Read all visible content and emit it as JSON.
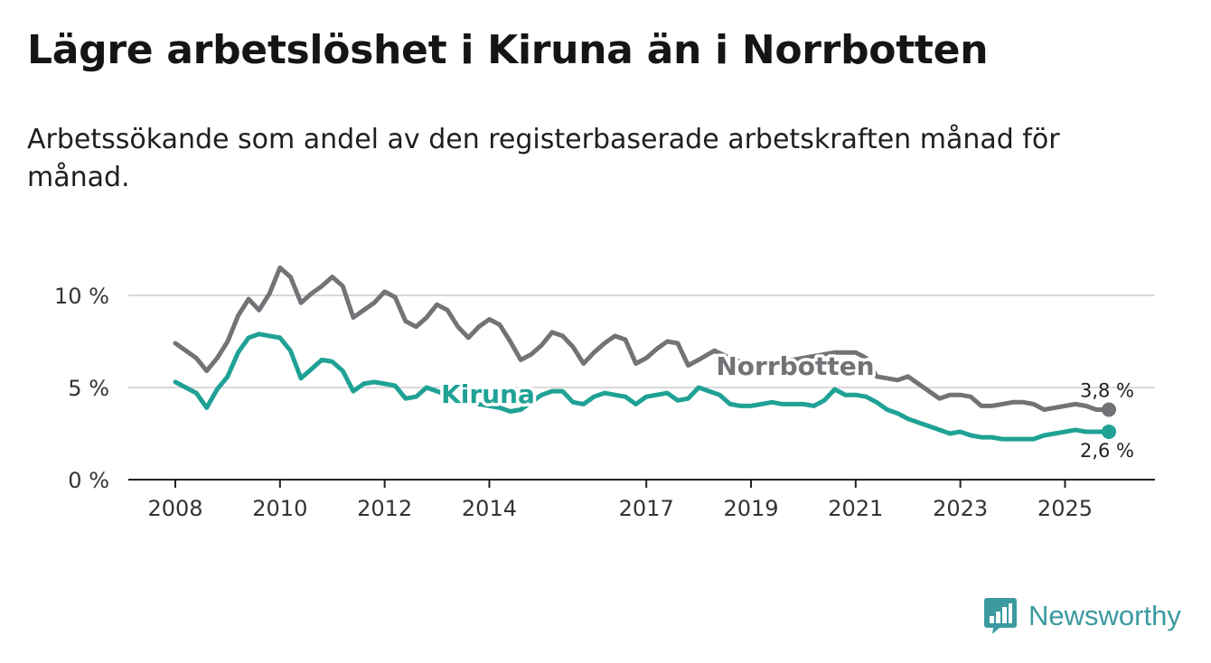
{
  "header": {
    "title": "Lägre arbetslöshet i Kiruna än i Norrbotten",
    "subtitle": "Arbetssökande som andel av den registerbaserade arbetskraften månad för månad."
  },
  "brand": {
    "name": "Newsworthy",
    "color": "#3b9aa0",
    "icon": "bar-chart-icon"
  },
  "chart_data": {
    "type": "line",
    "title": "Lägre arbetslöshet i Kiruna än i Norrbotten",
    "subtitle": "Arbetssökande som andel av den registerbaserade arbetskraften månad för månad.",
    "xlabel": "",
    "ylabel": "",
    "xlim": [
      2008,
      2026.5
    ],
    "ylim": [
      0,
      12
    ],
    "grid": true,
    "x_ticks": [
      2008,
      2010,
      2012,
      2014,
      2017,
      2019,
      2021,
      2023,
      2025
    ],
    "y_ticks": [
      {
        "value": 0,
        "label": "0 %"
      },
      {
        "value": 5,
        "label": "5 %"
      },
      {
        "value": 10,
        "label": "10 %"
      }
    ],
    "series": [
      {
        "name": "Norrbotten",
        "color": "#737377",
        "end_label": "3,8 %",
        "x": [
          2008,
          2008.2,
          2008.4,
          2008.6,
          2008.8,
          2009,
          2009.2,
          2009.4,
          2009.6,
          2009.8,
          2010,
          2010.2,
          2010.4,
          2010.6,
          2010.8,
          2011,
          2011.2,
          2011.4,
          2011.6,
          2011.8,
          2012,
          2012.2,
          2012.4,
          2012.6,
          2012.8,
          2013,
          2013.2,
          2013.4,
          2013.6,
          2013.8,
          2014,
          2014.2,
          2014.4,
          2014.6,
          2014.8,
          2015,
          2015.2,
          2015.4,
          2015.6,
          2015.8,
          2016,
          2016.2,
          2016.4,
          2016.6,
          2016.8,
          2017,
          2017.2,
          2017.4,
          2017.6,
          2017.8,
          2018,
          2018.3,
          2018.6,
          2019,
          2019.4,
          2019.8,
          2020.2,
          2020.6,
          2021,
          2021.2,
          2021.4,
          2021.6,
          2021.8,
          2022,
          2022.2,
          2022.4,
          2022.6,
          2022.8,
          2023,
          2023.2,
          2023.4,
          2023.6,
          2023.8,
          2024,
          2024.2,
          2024.4,
          2024.6,
          2024.8,
          2025,
          2025.2,
          2025.4,
          2025.6,
          2025.7
        ],
        "values": [
          7.4,
          7.0,
          6.6,
          5.9,
          6.6,
          7.5,
          8.9,
          9.8,
          9.2,
          10.1,
          11.5,
          11.0,
          9.6,
          10.1,
          10.5,
          11.0,
          10.5,
          8.8,
          9.2,
          9.6,
          10.2,
          9.9,
          8.6,
          8.3,
          8.8,
          9.5,
          9.2,
          8.3,
          7.7,
          8.3,
          8.7,
          8.4,
          7.5,
          6.5,
          6.8,
          7.3,
          8.0,
          7.8,
          7.2,
          6.3,
          6.9,
          7.4,
          7.8,
          7.6,
          6.3,
          6.6,
          7.1,
          7.5,
          7.4,
          6.2,
          6.5,
          7.0,
          6.6,
          6.2,
          6.4,
          6.5,
          6.7,
          6.9,
          6.9,
          6.6,
          5.6,
          5.5,
          5.4,
          5.6,
          5.2,
          4.8,
          4.4,
          4.6,
          4.6,
          4.5,
          4.0,
          4.0,
          4.1,
          4.2,
          4.2,
          4.1,
          3.8,
          3.9,
          4.0,
          4.1,
          4.0,
          3.8,
          3.8
        ]
      },
      {
        "name": "Kiruna",
        "color": "#1fa295",
        "end_label": "2,6 %",
        "x": [
          2008,
          2008.2,
          2008.4,
          2008.6,
          2008.8,
          2009,
          2009.2,
          2009.4,
          2009.6,
          2009.8,
          2010,
          2010.2,
          2010.4,
          2010.6,
          2010.8,
          2011,
          2011.2,
          2011.4,
          2011.6,
          2011.8,
          2012,
          2012.2,
          2012.4,
          2012.6,
          2012.8,
          2013,
          2013.2,
          2013.4,
          2013.6,
          2013.8,
          2014,
          2014.2,
          2014.4,
          2014.6,
          2014.8,
          2015,
          2015.2,
          2015.4,
          2015.6,
          2015.8,
          2016,
          2016.2,
          2016.4,
          2016.6,
          2016.8,
          2017,
          2017.2,
          2017.4,
          2017.6,
          2017.8,
          2018,
          2018.2,
          2018.4,
          2018.6,
          2018.8,
          2019,
          2019.2,
          2019.4,
          2019.6,
          2019.8,
          2020,
          2020.2,
          2020.4,
          2020.6,
          2020.8,
          2021,
          2021.2,
          2021.4,
          2021.6,
          2021.8,
          2022,
          2022.2,
          2022.4,
          2022.6,
          2022.8,
          2023,
          2023.2,
          2023.4,
          2023.6,
          2023.8,
          2024,
          2024.2,
          2024.4,
          2024.6,
          2024.8,
          2025,
          2025.2,
          2025.4,
          2025.6,
          2025.7
        ],
        "values": [
          5.3,
          5.0,
          4.7,
          3.9,
          4.9,
          5.6,
          6.9,
          7.7,
          7.9,
          7.8,
          7.7,
          7.0,
          5.5,
          6.0,
          6.5,
          6.4,
          5.9,
          4.8,
          5.2,
          5.3,
          5.2,
          5.1,
          4.4,
          4.5,
          5.0,
          4.8,
          4.6,
          4.3,
          4.2,
          4.1,
          4.0,
          3.9,
          3.7,
          3.8,
          4.2,
          4.6,
          4.8,
          4.8,
          4.2,
          4.1,
          4.5,
          4.7,
          4.6,
          4.5,
          4.1,
          4.5,
          4.6,
          4.7,
          4.3,
          4.4,
          5.0,
          4.8,
          4.6,
          4.1,
          4.0,
          4.0,
          4.1,
          4.2,
          4.1,
          4.1,
          4.1,
          4.0,
          4.3,
          4.9,
          4.6,
          4.6,
          4.5,
          4.2,
          3.8,
          3.6,
          3.3,
          3.1,
          2.9,
          2.7,
          2.5,
          2.6,
          2.4,
          2.3,
          2.3,
          2.2,
          2.2,
          2.2,
          2.2,
          2.4,
          2.5,
          2.6,
          2.7,
          2.6,
          2.6,
          2.6
        ]
      }
    ]
  }
}
